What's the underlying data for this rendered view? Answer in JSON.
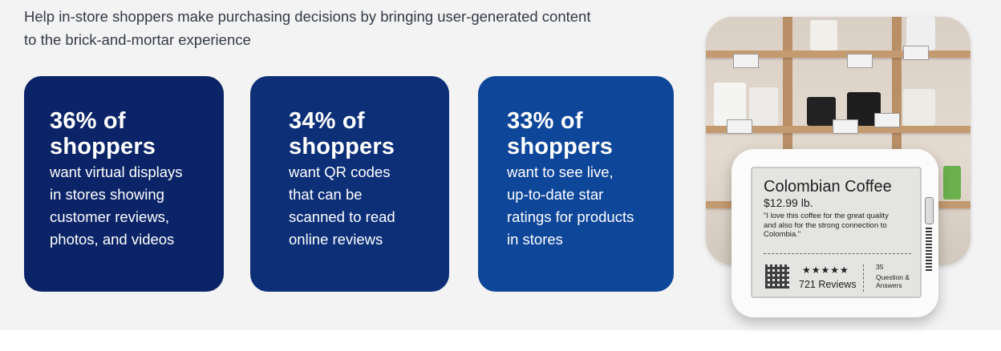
{
  "intro": {
    "line1": "Help in-store shoppers make purchasing decisions by bringing user-generated content",
    "line2": "to the brick-and-mortar experience"
  },
  "cards": [
    {
      "stat_line1": "36% of",
      "stat_line2": "shoppers",
      "desc": [
        "want virtual displays",
        "in stores showing",
        "customer reviews,",
        "photos, and videos"
      ],
      "color": "#0b2467"
    },
    {
      "stat_line1": "34% of",
      "stat_line2": "shoppers",
      "desc": [
        "want QR codes",
        "that can be",
        "scanned to read",
        "online reviews"
      ],
      "color": "#0c2f78"
    },
    {
      "stat_line1": "33% of",
      "stat_line2": "shoppers",
      "desc": [
        "want to see live,",
        "up-to-date star",
        "ratings for products",
        "in stores"
      ],
      "color": "#0e469a"
    }
  ],
  "device": {
    "product_name": "Colombian Coffee",
    "price": "$12.99 lb.",
    "quote": "\"I love this coffee for the great quality and also for the strong connection to Colombia.\"",
    "stars": "★★★★★",
    "reviews": "721 Reviews",
    "qa_count": "35",
    "qa_label": "Question & Answers"
  }
}
